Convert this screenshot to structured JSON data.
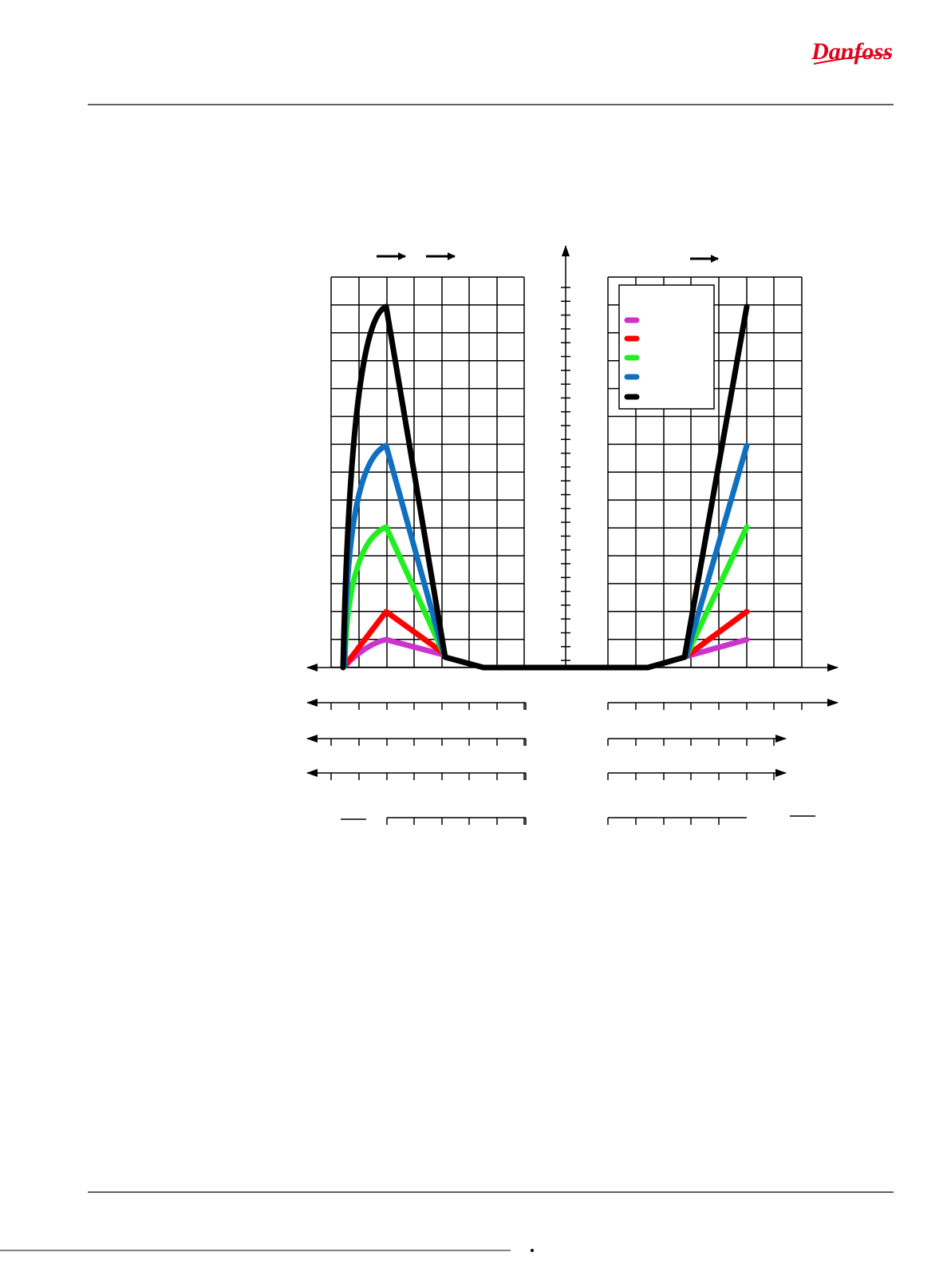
{
  "header": {
    "logo": "Danfoss"
  }
}
